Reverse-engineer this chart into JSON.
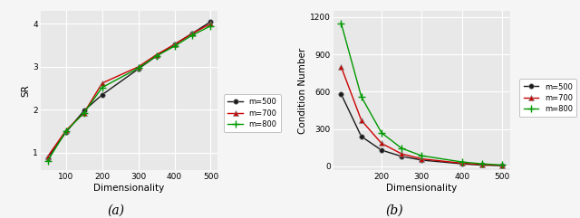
{
  "left": {
    "x": [
      50,
      100,
      150,
      200,
      300,
      350,
      400,
      450,
      500
    ],
    "y_m500": [
      0.88,
      1.48,
      1.98,
      2.35,
      2.95,
      3.25,
      3.52,
      3.78,
      4.05
    ],
    "y_m700": [
      0.92,
      1.52,
      1.93,
      2.62,
      3.0,
      3.28,
      3.52,
      3.78,
      4.0
    ],
    "y_m800": [
      0.82,
      1.5,
      1.93,
      2.52,
      2.97,
      3.25,
      3.48,
      3.74,
      3.95
    ],
    "xlabel": "Dimensionality",
    "ylabel": "SR",
    "title": "(a)",
    "ylim": [
      0.6,
      4.3
    ],
    "xlim": [
      30,
      520
    ],
    "yticks": [
      1,
      2,
      3,
      4
    ],
    "xticks": [
      100,
      200,
      300,
      400,
      500
    ]
  },
  "right": {
    "x": [
      100,
      150,
      200,
      250,
      300,
      400,
      450,
      500
    ],
    "y_m500": [
      580,
      240,
      130,
      80,
      50,
      20,
      10,
      5
    ],
    "y_m700": [
      800,
      370,
      185,
      100,
      60,
      25,
      14,
      8
    ],
    "y_m800": [
      1150,
      560,
      270,
      145,
      85,
      35,
      20,
      10
    ],
    "xlabel": "Dimensionality",
    "ylabel": "Condition Number",
    "title": "(b)",
    "ylim": [
      -30,
      1250
    ],
    "xlim": [
      80,
      520
    ],
    "yticks": [
      0,
      300,
      600,
      900,
      1200
    ],
    "xticks": [
      200,
      300,
      400,
      500
    ]
  },
  "colors": {
    "m500": "#1a1a1a",
    "m700": "#cc0000",
    "m800": "#009900"
  },
  "legend_labels": {
    "m500": "m=500",
    "m700": "m=700",
    "m800": "m=800"
  },
  "fig_bg_color": "#f5f5f5",
  "plot_bg_color": "#e8e8e8",
  "grid_color": "#ffffff",
  "marker_size": 4,
  "line_width": 1.0
}
